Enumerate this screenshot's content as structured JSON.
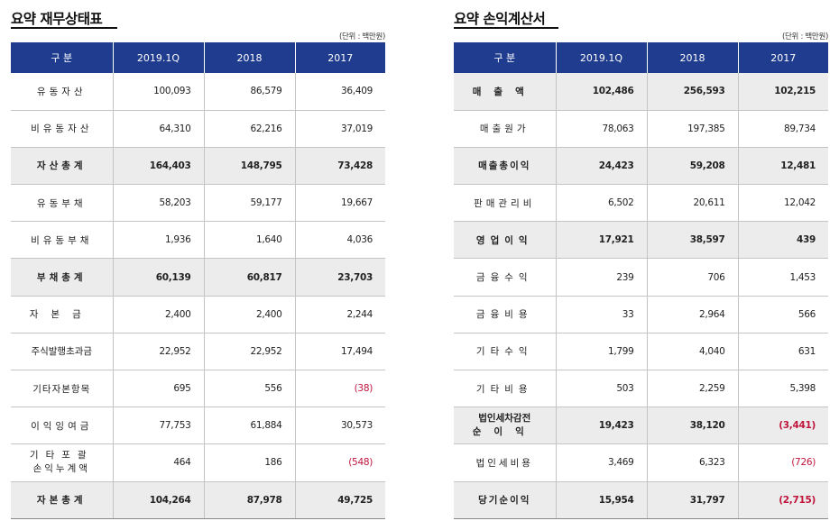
{
  "balance_sheet": {
    "title": "요약 재무상태표",
    "unit": "(단위 : 백만원)",
    "headers": [
      "구 분",
      "2019.1Q",
      "2018",
      "2017"
    ],
    "rows": [
      {
        "label": "유동자산",
        "v1": "100,093",
        "v2": "86,579",
        "v3": "36,409"
      },
      {
        "label": "비유동자산",
        "v1": "64,310",
        "v2": "62,216",
        "v3": "37,019"
      },
      {
        "label": "자산총계",
        "v1": "164,403",
        "v2": "148,795",
        "v3": "73,428"
      },
      {
        "label": "유동부채",
        "v1": "58,203",
        "v2": "59,177",
        "v3": "19,667"
      },
      {
        "label": "비유동부채",
        "v1": "1,936",
        "v2": "1,640",
        "v3": "4,036"
      },
      {
        "label": "부채총계",
        "v1": "60,139",
        "v2": "60,817",
        "v3": "23,703"
      },
      {
        "label": "자본금",
        "v1": "2,400",
        "v2": "2,400",
        "v3": "2,244"
      },
      {
        "label": "주식발행초과금",
        "v1": "22,952",
        "v2": "22,952",
        "v3": "17,494"
      },
      {
        "label": "기타자본항목",
        "v1": "695",
        "v2": "556",
        "v3": "(38)"
      },
      {
        "label": "이익잉여금",
        "v1": "77,753",
        "v2": "61,884",
        "v3": "30,573"
      },
      {
        "label_line1": "기타포괄",
        "label_line2": "손익누계액",
        "v1": "464",
        "v2": "186",
        "v3": "(548)"
      },
      {
        "label": "자본총계",
        "v1": "104,264",
        "v2": "87,978",
        "v3": "49,725"
      }
    ]
  },
  "income_statement": {
    "title": "요약 손익계산서",
    "unit": "(단위 : 백만원)",
    "headers": [
      "구 분",
      "2019.1Q",
      "2018",
      "2017"
    ],
    "rows": [
      {
        "label": "매출액",
        "v1": "102,486",
        "v2": "256,593",
        "v3": "102,215"
      },
      {
        "label": "매출원가",
        "v1": "78,063",
        "v2": "197,385",
        "v3": "89,734"
      },
      {
        "label": "매출총이익",
        "v1": "24,423",
        "v2": "59,208",
        "v3": "12,481"
      },
      {
        "label": "판매관리비",
        "v1": "6,502",
        "v2": "20,611",
        "v3": "12,042"
      },
      {
        "label": "영업이익",
        "v1": "17,921",
        "v2": "38,597",
        "v3": "439"
      },
      {
        "label": "금융수익",
        "v1": "239",
        "v2": "706",
        "v3": "1,453"
      },
      {
        "label": "금융비용",
        "v1": "33",
        "v2": "2,964",
        "v3": "566"
      },
      {
        "label": "기타수익",
        "v1": "1,799",
        "v2": "4,040",
        "v3": "631"
      },
      {
        "label": "기타비용",
        "v1": "503",
        "v2": "2,259",
        "v3": "5,398"
      },
      {
        "label_line1": "법인세차감전",
        "label_line2": "순이익",
        "v1": "19,423",
        "v2": "38,120",
        "v3": "(3,441)"
      },
      {
        "label": "법인세비용",
        "v1": "3,469",
        "v2": "6,323",
        "v3": "(726)"
      },
      {
        "label": "당기순이익",
        "v1": "15,954",
        "v2": "31,797",
        "v3": "(2,715)"
      }
    ]
  },
  "colors": {
    "header_bg": "#1f3c8e",
    "highlight_row_bg": "#ececec",
    "negative_text": "#c0143c"
  }
}
